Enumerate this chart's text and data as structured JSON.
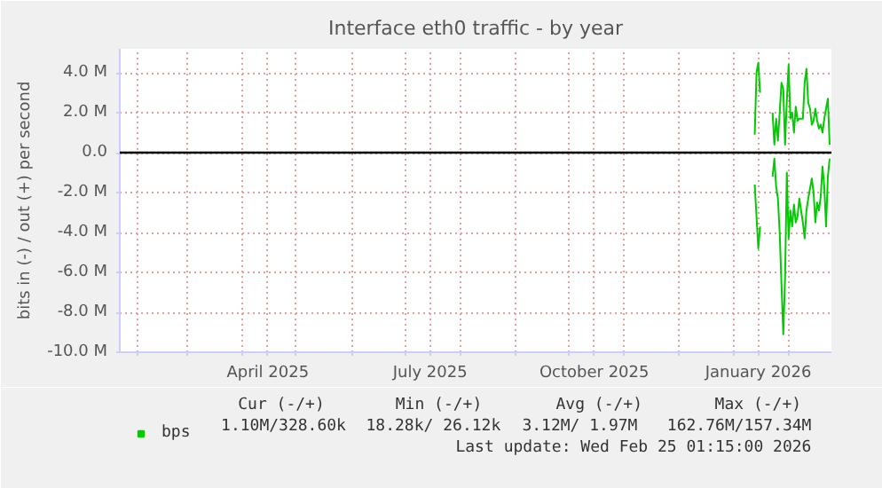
{
  "chart_data": {
    "type": "line",
    "title": "Interface eth0 traffic - by year",
    "ylabel": "bits in (-) / out (+) per second",
    "xlim": [
      "2025-01-22",
      "2026-02-25"
    ],
    "xticks": [
      {
        "value": "2025-02-01",
        "label": null
      },
      {
        "value": "2025-03-01",
        "label": null
      },
      {
        "value": "2025-04-01",
        "label": null
      },
      {
        "value": "2025-04-15",
        "label": "April 2025"
      },
      {
        "value": "2025-05-01",
        "label": null
      },
      {
        "value": "2025-06-01",
        "label": null
      },
      {
        "value": "2025-07-01",
        "label": null
      },
      {
        "value": "2025-07-15",
        "label": "July 2025"
      },
      {
        "value": "2025-08-01",
        "label": null
      },
      {
        "value": "2025-09-01",
        "label": null
      },
      {
        "value": "2025-10-01",
        "label": null
      },
      {
        "value": "2025-10-15",
        "label": "October 2025"
      },
      {
        "value": "2025-11-01",
        "label": null
      },
      {
        "value": "2025-12-01",
        "label": null
      },
      {
        "value": "2026-01-01",
        "label": null
      },
      {
        "value": "2026-01-15",
        "label": "January 2026"
      },
      {
        "value": "2026-02-01",
        "label": null
      }
    ],
    "ylim": [
      -10000000,
      5200000
    ],
    "yticks": [
      {
        "value": -10000000,
        "label": "-10.0 M"
      },
      {
        "value": -8000000,
        "label": "-8.0 M"
      },
      {
        "value": -6000000,
        "label": "-6.0 M"
      },
      {
        "value": -4000000,
        "label": "-4.0 M"
      },
      {
        "value": -2000000,
        "label": "-2.0 M"
      },
      {
        "value": 0,
        "label": "0.0"
      },
      {
        "value": 2000000,
        "label": "2.0 M"
      },
      {
        "value": 4000000,
        "label": "4.0 M"
      }
    ],
    "grid": true,
    "legend": "bottom left",
    "ref_lines": [
      {
        "axis": "y",
        "value": 0,
        "label": null,
        "color": "#000000"
      }
    ],
    "series": [
      {
        "name": "bps",
        "color": "#00cc00",
        "x": [
          "2026-01-13",
          "2026-01-14",
          "2026-01-15",
          "2026-01-16",
          "2026-01-20",
          "2026-01-23",
          "2026-01-24",
          "2026-01-25",
          "2026-01-26",
          "2026-01-27",
          "2026-01-28",
          "2026-01-29",
          "2026-01-30",
          "2026-01-31",
          "2026-02-01",
          "2026-02-02",
          "2026-02-03",
          "2026-02-04",
          "2026-02-05",
          "2026-02-06",
          "2026-02-07",
          "2026-02-09",
          "2026-02-10",
          "2026-02-11",
          "2026-02-12",
          "2026-02-13",
          "2026-02-14",
          "2026-02-15",
          "2026-02-16",
          "2026-02-17",
          "2026-02-18",
          "2026-02-19",
          "2026-02-20",
          "2026-02-21",
          "2026-02-22",
          "2026-02-23",
          "2026-02-24"
        ],
        "values": [
          900000,
          4000000,
          4500000,
          3000000,
          null,
          2000000,
          400000,
          1700000,
          600000,
          2000000,
          3500000,
          3200000,
          400000,
          2600000,
          4400000,
          1700000,
          2000000,
          1000000,
          2300000,
          1600000,
          1700000,
          1700000,
          3500000,
          4200000,
          2500000,
          2200000,
          1400000,
          1600000,
          2200000,
          1600000,
          1200000,
          1400000,
          1000000,
          1700000,
          2200000,
          2700000,
          400000
        ]
      },
      {
        "color": "#00cc00",
        "x": [
          "2026-01-13",
          "2026-01-14",
          "2026-01-15",
          "2026-01-16",
          "2026-01-20",
          "2026-01-23",
          "2026-01-24",
          "2026-01-25",
          "2026-01-26",
          "2026-01-27",
          "2026-01-28",
          "2026-01-29",
          "2026-01-30",
          "2026-01-31",
          "2026-02-01",
          "2026-02-02",
          "2026-02-03",
          "2026-02-04",
          "2026-02-05",
          "2026-02-06",
          "2026-02-07",
          "2026-02-09",
          "2026-02-10",
          "2026-02-11",
          "2026-02-12",
          "2026-02-14",
          "2026-02-15",
          "2026-02-16",
          "2026-02-17",
          "2026-02-18",
          "2026-02-19",
          "2026-02-20",
          "2026-02-21",
          "2026-02-22",
          "2026-02-23",
          "2026-02-24"
        ],
        "values": [
          -1600000,
          -3200000,
          -4800000,
          -3700000,
          null,
          -1200000,
          -300000,
          -1700000,
          -2300000,
          -4000000,
          -6600000,
          -9100000,
          -6300000,
          -1000000,
          -4300000,
          -2900000,
          -3700000,
          -2600000,
          -3500000,
          -3200000,
          -2300000,
          -3500000,
          -4300000,
          -2900000,
          -2300000,
          -1300000,
          -2000000,
          -3500000,
          -2500000,
          -2900000,
          -2200000,
          -700000,
          -1700000,
          -3700000,
          -1200000,
          -300000
        ]
      }
    ],
    "annotations": [
      "Cur (-/+)",
      "Min (-/+)",
      "Avg (-/+)",
      "Max (-/+)",
      "1.10M/328.60k",
      "18.28k/ 26.12k",
      "3.12M/   1.97M",
      "162.76M/157.34M",
      "Last update: Wed Feb 25 01:15:00 2026"
    ]
  }
}
